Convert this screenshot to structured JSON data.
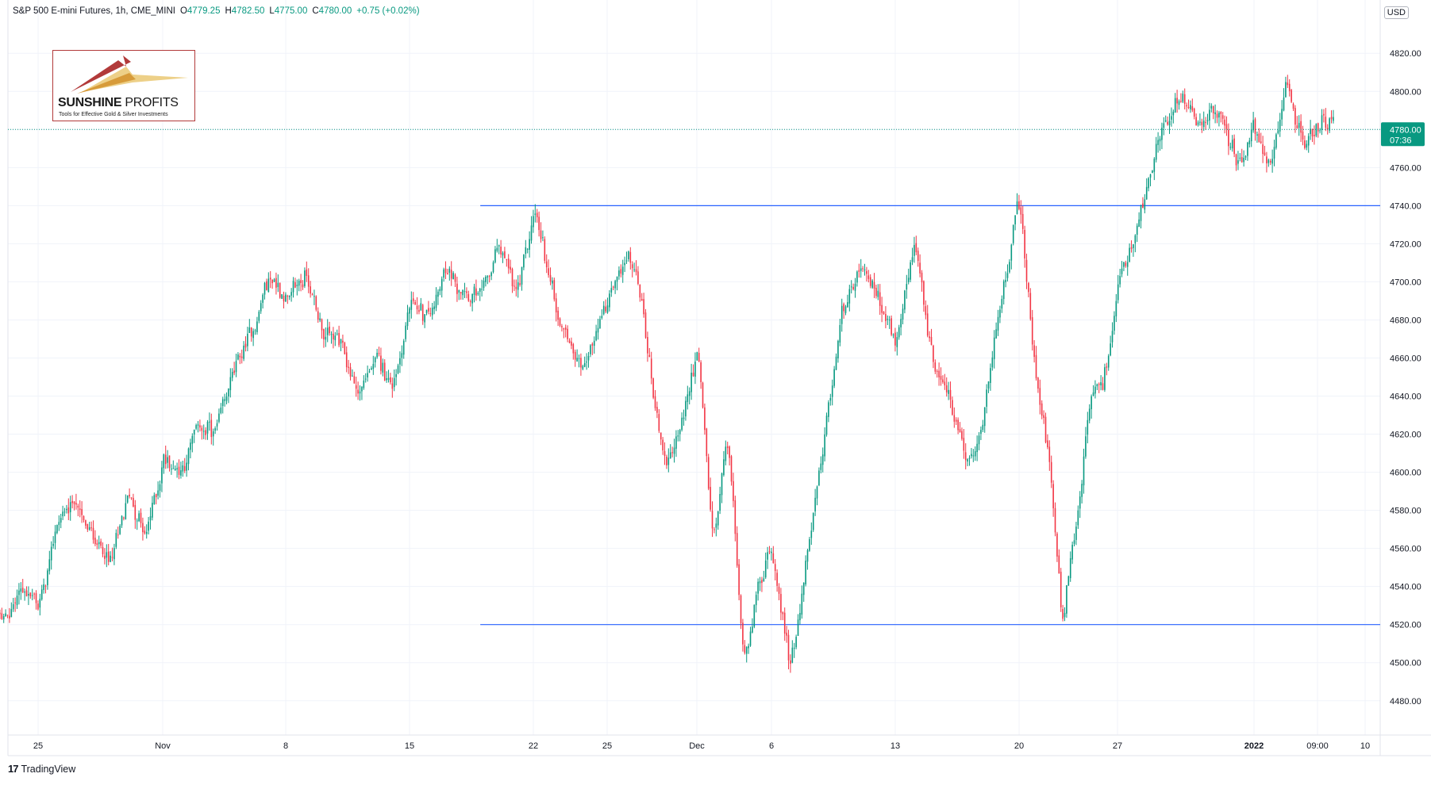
{
  "header": {
    "symbol": "S&P 500 E-mini Futures, 1h, CME_MINI",
    "open_label": "O",
    "open": "4779.25",
    "high_label": "H",
    "high": "4782.50",
    "low_label": "L",
    "low": "4775.00",
    "close_label": "C",
    "close": "4780.00",
    "change": "+0.75 (+0.02%)"
  },
  "currency": "USD",
  "logo": {
    "brand_bold": "SUNSHINE",
    "brand_light": " PROFITS",
    "tagline": "Tools for Effective Gold & Silver Investments"
  },
  "footer": {
    "logo_glyph": "17",
    "brand": "TradingView"
  },
  "price_tag": {
    "price": "4780.00",
    "countdown": "07:36"
  },
  "colors": {
    "up": "#089981",
    "down": "#f23645",
    "line": "#2962ff",
    "grid": "#f0f3fa",
    "last_price": "#089981"
  },
  "chart_data": {
    "type": "candlestick",
    "title": "",
    "ylim": [
      4462,
      4848
    ],
    "y_ticks": [
      4480,
      4500,
      4520,
      4540,
      4560,
      4580,
      4600,
      4620,
      4640,
      4660,
      4680,
      4700,
      4720,
      4740,
      4760,
      4780,
      4800,
      4820
    ],
    "y_tick_labels": [
      "4480.00",
      "4500.00",
      "4520.00",
      "4540.00",
      "4560.00",
      "4580.00",
      "4600.00",
      "4620.00",
      "4640.00",
      "4660.00",
      "4680.00",
      "4700.00",
      "4720.00",
      "4740.00",
      "4760.00",
      "4780.00",
      "4800.00",
      "4820.00"
    ],
    "x_ticks": [
      "25",
      "Nov",
      "8",
      "15",
      "22",
      "25",
      "Dec",
      "6",
      "13",
      "20",
      "27",
      "2022",
      "09:00",
      "10"
    ],
    "last_price": 4780.0,
    "horizontal_lines": [
      {
        "value": 4740,
        "from": "Nov 19"
      },
      {
        "value": 4520,
        "from": "Nov 19"
      }
    ],
    "price_path": [
      [
        "Oct 22",
        4535
      ],
      [
        "Oct 23",
        4520
      ],
      [
        "Oct 24",
        4540
      ],
      [
        "Oct 25",
        4530
      ],
      [
        "Oct 26",
        4575
      ],
      [
        "Oct 27",
        4585
      ],
      [
        "Oct 28",
        4565
      ],
      [
        "Oct 29",
        4550
      ],
      [
        "Oct 30",
        4590
      ],
      [
        "Oct 31",
        4565
      ],
      [
        "Nov 1",
        4610
      ],
      [
        "Nov 2",
        4600
      ],
      [
        "Nov 3",
        4625
      ],
      [
        "Nov 4",
        4620
      ],
      [
        "Nov 5",
        4655
      ],
      [
        "Nov 6",
        4672
      ],
      [
        "Nov 7",
        4705
      ],
      [
        "Nov 8",
        4690
      ],
      [
        "Nov 9",
        4705
      ],
      [
        "Nov 10",
        4675
      ],
      [
        "Nov 11",
        4668
      ],
      [
        "Nov 12",
        4640
      ],
      [
        "Nov 13",
        4660
      ],
      [
        "Nov 14",
        4645
      ],
      [
        "Nov 15",
        4690
      ],
      [
        "Nov 16",
        4680
      ],
      [
        "Nov 17",
        4705
      ],
      [
        "Nov 18",
        4695
      ],
      [
        "Nov 19",
        4690
      ],
      [
        "Nov 20",
        4720
      ],
      [
        "Nov 21",
        4690
      ],
      [
        "Nov 22",
        4738
      ],
      [
        "Nov 23",
        4680
      ],
      [
        "Nov 24",
        4655
      ],
      [
        "Nov 25",
        4690
      ],
      [
        "Nov 26",
        4715
      ],
      [
        "Nov 27",
        4700
      ],
      [
        "Nov 28",
        4640
      ],
      [
        "Nov 29",
        4600
      ],
      [
        "Nov 30",
        4630
      ],
      [
        "Dec 1",
        4665
      ],
      [
        "Dec 2",
        4560
      ],
      [
        "Dec 3",
        4625
      ],
      [
        "Dec 4",
        4500
      ],
      [
        "Dec 5",
        4540
      ],
      [
        "Dec 6",
        4560
      ],
      [
        "Dec 7",
        4495
      ],
      [
        "Dec 8",
        4560
      ],
      [
        "Dec 9",
        4620
      ],
      [
        "Dec 10",
        4690
      ],
      [
        "Dec 11",
        4705
      ],
      [
        "Dec 12",
        4690
      ],
      [
        "Dec 13",
        4665
      ],
      [
        "Dec 14",
        4720
      ],
      [
        "Dec 15",
        4660
      ],
      [
        "Dec 16",
        4640
      ],
      [
        "Dec 17",
        4600
      ],
      [
        "Dec 18",
        4630
      ],
      [
        "Dec 19",
        4700
      ],
      [
        "Dec 20",
        4742
      ],
      [
        "Dec 21",
        4650
      ],
      [
        "Dec 22",
        4610
      ],
      [
        "Dec 23",
        4520
      ],
      [
        "Dec 24",
        4580
      ],
      [
        "Dec 25",
        4640
      ],
      [
        "Dec 26",
        4650
      ],
      [
        "Dec 27",
        4700
      ],
      [
        "Dec 28",
        4730
      ],
      [
        "Dec 29",
        4780
      ],
      [
        "Dec 30",
        4795
      ],
      [
        "Dec 31",
        4785
      ],
      [
        "Jan 1",
        4790
      ],
      [
        "Jan 2",
        4760
      ],
      [
        "Jan 3",
        4780
      ],
      [
        "Jan 4",
        4760
      ],
      [
        "Jan 5",
        4805
      ],
      [
        "Jan 6",
        4770
      ],
      [
        "Jan 7",
        4785
      ],
      [
        "Jan 8",
        4780
      ]
    ]
  }
}
